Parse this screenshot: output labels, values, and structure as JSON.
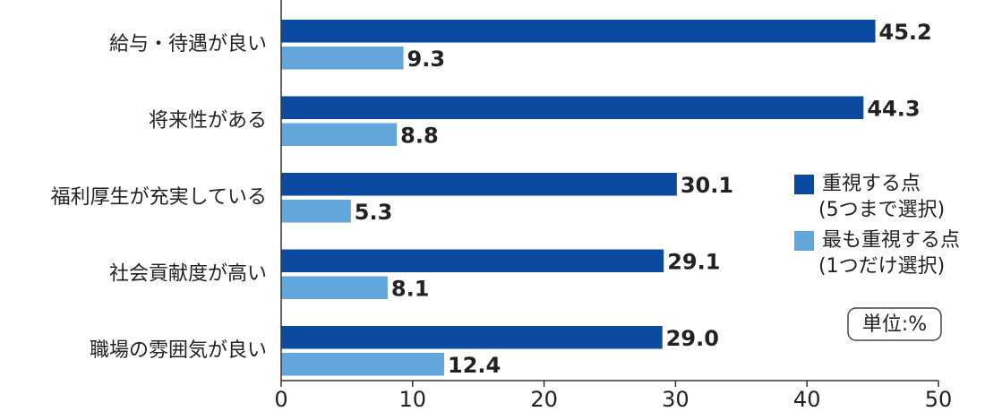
{
  "chart_data": {
    "type": "bar",
    "orientation": "horizontal",
    "categories": [
      "給与・待遇が良い",
      "将来性がある",
      "福利厚生が充実している",
      "社会貢献度が高い",
      "職場の雰囲気が良い"
    ],
    "series": [
      {
        "name": "重視する点",
        "selection": "(5つまで選択)",
        "color": "#0a4aa0",
        "values": [
          45.2,
          44.3,
          30.1,
          29.1,
          29.0
        ],
        "value_labels": [
          "45.2",
          "44.3",
          "30.1",
          "29.1",
          "29.0"
        ]
      },
      {
        "name": "最も重視する点",
        "selection": "(1つだけ選択)",
        "color": "#62a6dc",
        "values": [
          9.3,
          8.8,
          5.3,
          8.1,
          12.4
        ],
        "value_labels": [
          "9.3",
          "8.8",
          "5.3",
          "8.1",
          "12.4"
        ]
      }
    ],
    "xlim": [
      0,
      50
    ],
    "xticks": [
      0,
      10,
      20,
      30,
      40,
      50
    ],
    "grid": false,
    "legend": "right",
    "unit_label": "単位:%"
  }
}
